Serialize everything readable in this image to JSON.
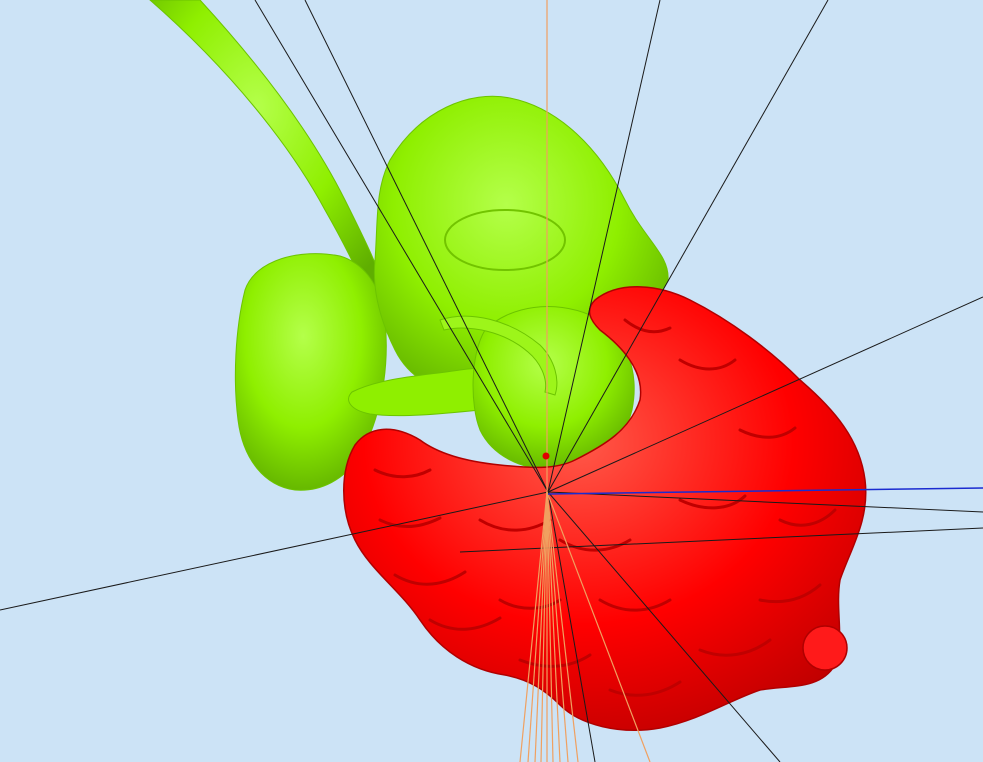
{
  "viewport": {
    "background_color": "#cce3f6"
  },
  "organs": [
    {
      "name": "upper-digestive-organs",
      "color": "#8fef00",
      "shade": "#6cc400",
      "highlight": "#b4ff4a"
    },
    {
      "name": "intestines",
      "color": "#ff0000",
      "shade": "#c00000",
      "highlight": "#ff5a4a"
    }
  ],
  "overlay_colors": {
    "orange_lines": "#f0a060",
    "black_lines": "#1a1a1a",
    "blue_line": "#1a2bd0",
    "marker_dot": "#e00000"
  }
}
